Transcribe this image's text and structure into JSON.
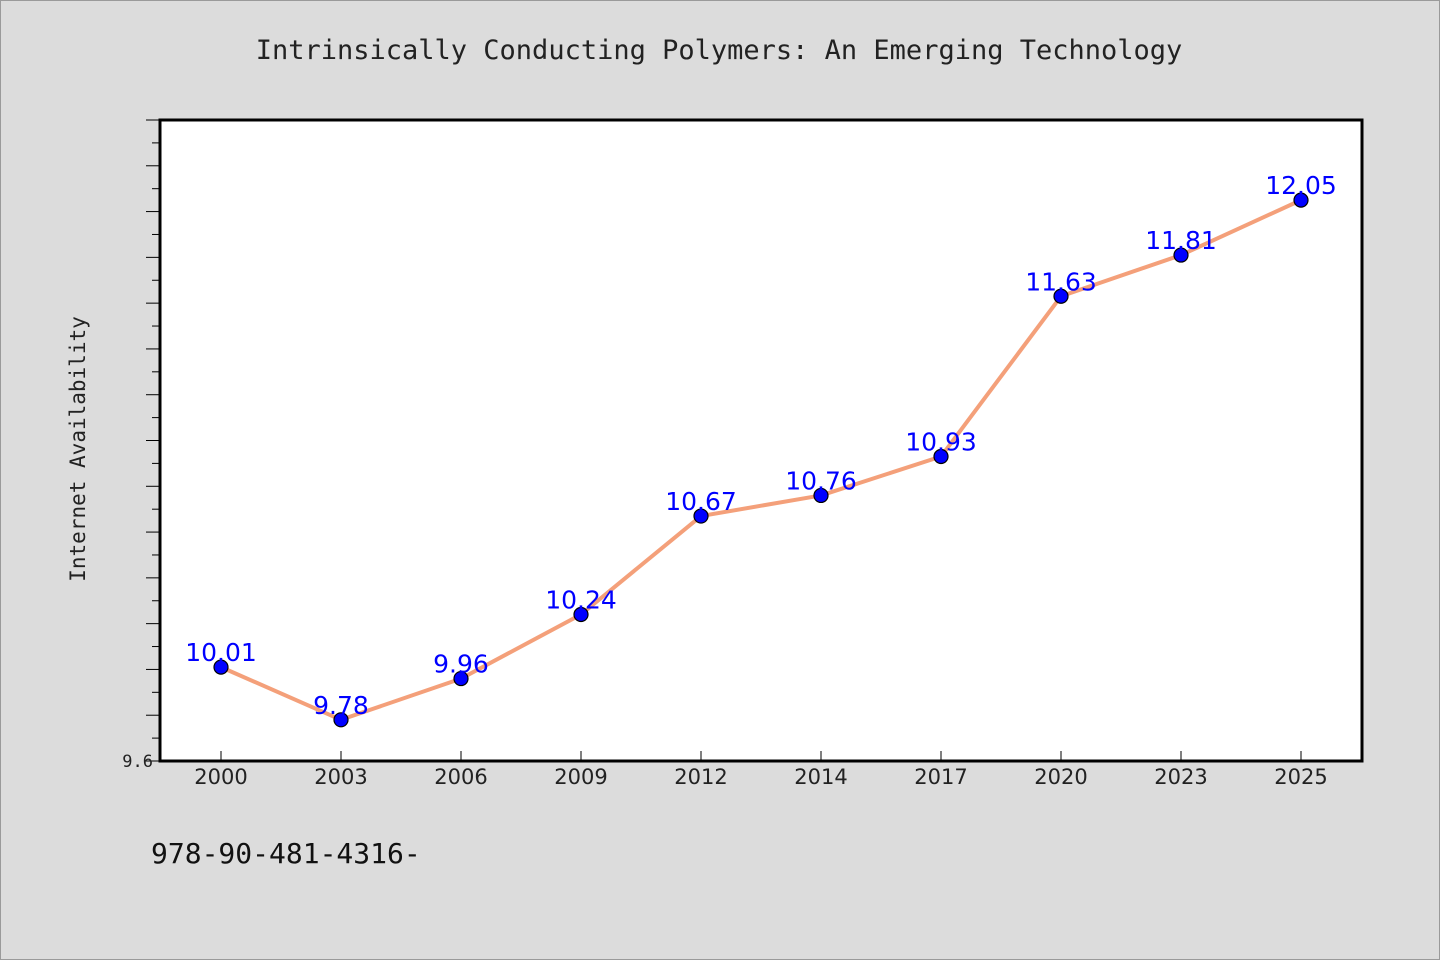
{
  "chart_data": {
    "type": "line",
    "title": "Intrinsically Conducting Polymers: An Emerging Technology",
    "xlabel": "",
    "ylabel": "Internet Availability",
    "categories": [
      "2000",
      "2003",
      "2006",
      "2009",
      "2012",
      "2014",
      "2017",
      "2020",
      "2023",
      "2025"
    ],
    "values": [
      10.01,
      9.78,
      9.96,
      10.24,
      10.67,
      10.76,
      10.93,
      11.63,
      11.81,
      12.05
    ],
    "data_labels": [
      "10.01",
      "9.78",
      "9.96",
      "10.24",
      "10.67",
      "10.76",
      "10.93",
      "11.63",
      "11.81",
      "12.05"
    ],
    "ylim": [
      9.6,
      12.4
    ],
    "y_tick_labels": [
      "9.6"
    ],
    "grid": false,
    "line_color": "#f4a07a",
    "marker_color": "#0000ff",
    "label_color": "#0000ff",
    "background_color": "#dcdcdc",
    "plot_background": "#ffffff"
  },
  "footer": {
    "code": "978-90-481-4316-"
  }
}
